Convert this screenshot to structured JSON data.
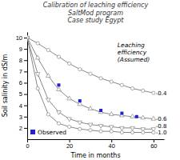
{
  "chart_data": {
    "type": "line",
    "title": "Calibration of leaching efficiency\nSaltMod program\nCase study Egypt",
    "x_label": "Time in months",
    "y_label": "Soil salinity in dS/m",
    "xlim": [
      0,
      65
    ],
    "ylim": [
      1,
      10.5
    ],
    "xticks": [
      0,
      20,
      40,
      60
    ],
    "yticks": [
      2,
      3,
      4,
      5,
      6,
      7,
      8,
      9,
      10
    ],
    "grid": false,
    "legend": "lower left",
    "series": [
      {
        "name": "-0.4",
        "type": "line",
        "color": "#888888",
        "marker": "circle",
        "x": [
          0,
          5,
          10,
          15,
          20,
          25,
          30,
          35,
          40,
          45,
          50,
          55,
          60
        ],
        "values": [
          10,
          9.5,
          8.9,
          8.3,
          7.7,
          7.2,
          6.8,
          6.4,
          6.1,
          5.8,
          5.5,
          5.3,
          5.1
        ]
      },
      {
        "name": "-0.6",
        "type": "line",
        "color": "#888888",
        "marker": "triangle-up",
        "x": [
          0,
          5,
          10,
          15,
          20,
          25,
          30,
          35,
          40,
          45,
          50,
          55,
          60
        ],
        "values": [
          10,
          8.2,
          6.6,
          5.4,
          4.6,
          4.1,
          3.7,
          3.4,
          3.2,
          3.1,
          3.0,
          2.9,
          2.8
        ]
      },
      {
        "name": "-0.8",
        "type": "line",
        "color": "#888888",
        "marker": "triangle-down",
        "x": [
          0,
          5,
          10,
          15,
          20,
          25,
          30,
          35,
          40,
          45,
          50,
          55,
          60
        ],
        "values": [
          10,
          6.8,
          4.5,
          3.4,
          2.8,
          2.5,
          2.3,
          2.2,
          2.1,
          2.0,
          2.0,
          1.9,
          1.9
        ]
      },
      {
        "name": "-1.0",
        "type": "line",
        "color": "#888888",
        "marker": "circle",
        "x": [
          0,
          5,
          10,
          15,
          20,
          25,
          30,
          35,
          40,
          45,
          50,
          55,
          60
        ],
        "values": [
          10,
          5.5,
          3.2,
          2.4,
          2.1,
          1.9,
          1.8,
          1.7,
          1.7,
          1.6,
          1.6,
          1.6,
          1.6
        ]
      },
      {
        "name": "Observed",
        "type": "scatter",
        "color": "#2222cc",
        "marker": "square",
        "x": [
          15,
          25,
          35,
          45,
          52
        ],
        "values": [
          5.8,
          4.4,
          3.55,
          3.3,
          3.0
        ]
      }
    ],
    "annotations": [
      "Leaching\nefficiency\n(Assumed)"
    ]
  }
}
